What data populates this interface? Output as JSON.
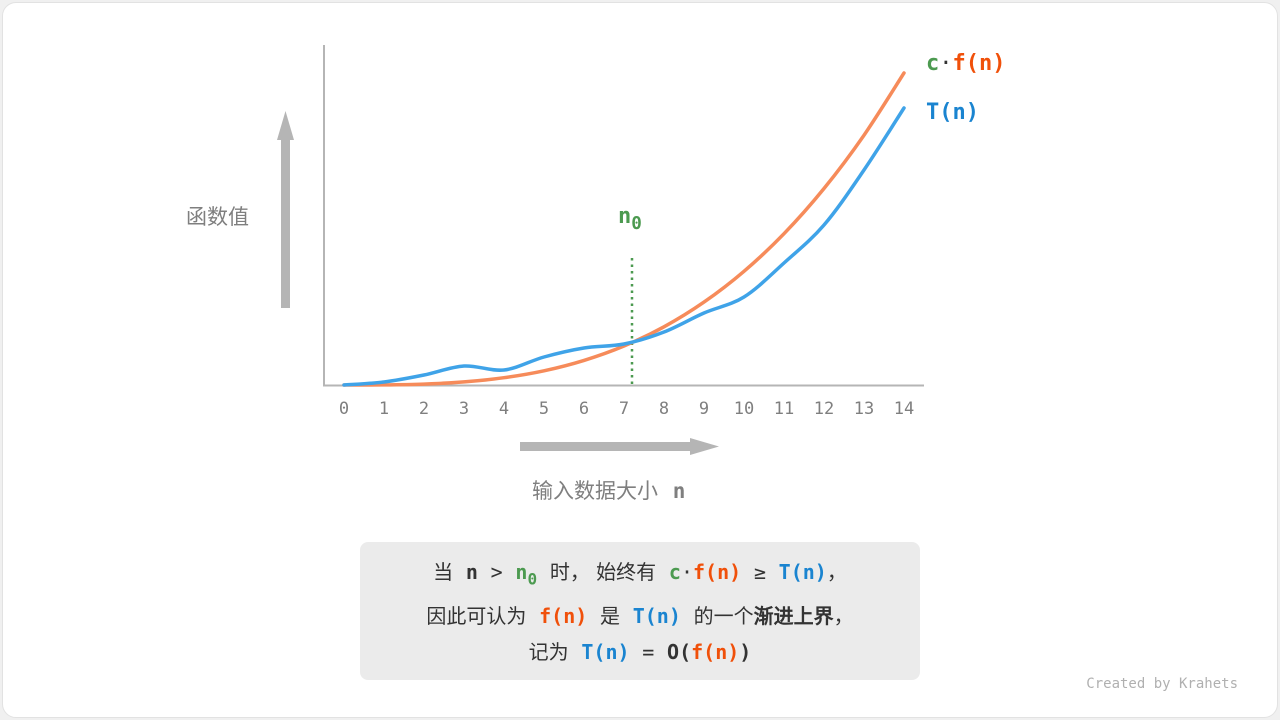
{
  "y_axis_label": "函数值",
  "x_axis_label": "输入数据大小",
  "x_axis_var": "n",
  "n0_label": {
    "base": "n",
    "sub": "0"
  },
  "legend": {
    "cf_c": "c",
    "cf_dot": "·",
    "cf_f": "f(n)",
    "t": "T(n)"
  },
  "colors": {
    "cf": "#f68b5a",
    "t": "#3fa3e8",
    "n0": "#4c9a50",
    "axis": "#b5b5b5",
    "text_orange": "#f0500a",
    "text_blue": "#1a84d0",
    "text_green": "#4c9a50"
  },
  "chart_data": {
    "type": "line",
    "x": [
      0,
      1,
      2,
      3,
      4,
      5,
      6,
      7,
      8,
      9,
      10,
      11,
      12,
      13,
      14
    ],
    "x_ticks": [
      "0",
      "1",
      "2",
      "3",
      "4",
      "5",
      "6",
      "7",
      "8",
      "9",
      "10",
      "11",
      "12",
      "13",
      "14"
    ],
    "n0": 7.2,
    "xlim": [
      0,
      14.5
    ],
    "ylim": [
      0,
      340
    ],
    "grid": false,
    "series": [
      {
        "name": "c·f(n)",
        "values": [
          0,
          0.1,
          0.9,
          3.1,
          7.3,
          14.2,
          24.6,
          39,
          58.2,
          82.9,
          113.7,
          151.3,
          196.5,
          249.8,
          312
        ]
      },
      {
        "name": "T(n)",
        "values": [
          0,
          3,
          10,
          19,
          15,
          28,
          37,
          41,
          53,
          72,
          88,
          122,
          160,
          215,
          277
        ]
      }
    ]
  },
  "caption": {
    "l1_a": "当",
    "l1_n": "n",
    "l1_gt": ">",
    "l1_n0": "n",
    "l1_n0_sub": "0",
    "l1_b": "时，  始终有",
    "l1_c": "c",
    "l1_dot": "·",
    "l1_f": "f(n)",
    "l1_ge": "≥",
    "l1_t": "T(n)",
    "l1_end": "，",
    "l2_a": "因此可认为",
    "l2_f": "f(n)",
    "l2_b": "是",
    "l2_t": "T(n)",
    "l2_c": "的一个",
    "l2_bold": "渐进上界",
    "l2_end": "，",
    "l3_a": "记为",
    "l3_t": "T(n)",
    "l3_eq": "=",
    "l3_o": "O(",
    "l3_f": "f(n)",
    "l3_close": ")"
  },
  "credit": "Created by Krahets"
}
